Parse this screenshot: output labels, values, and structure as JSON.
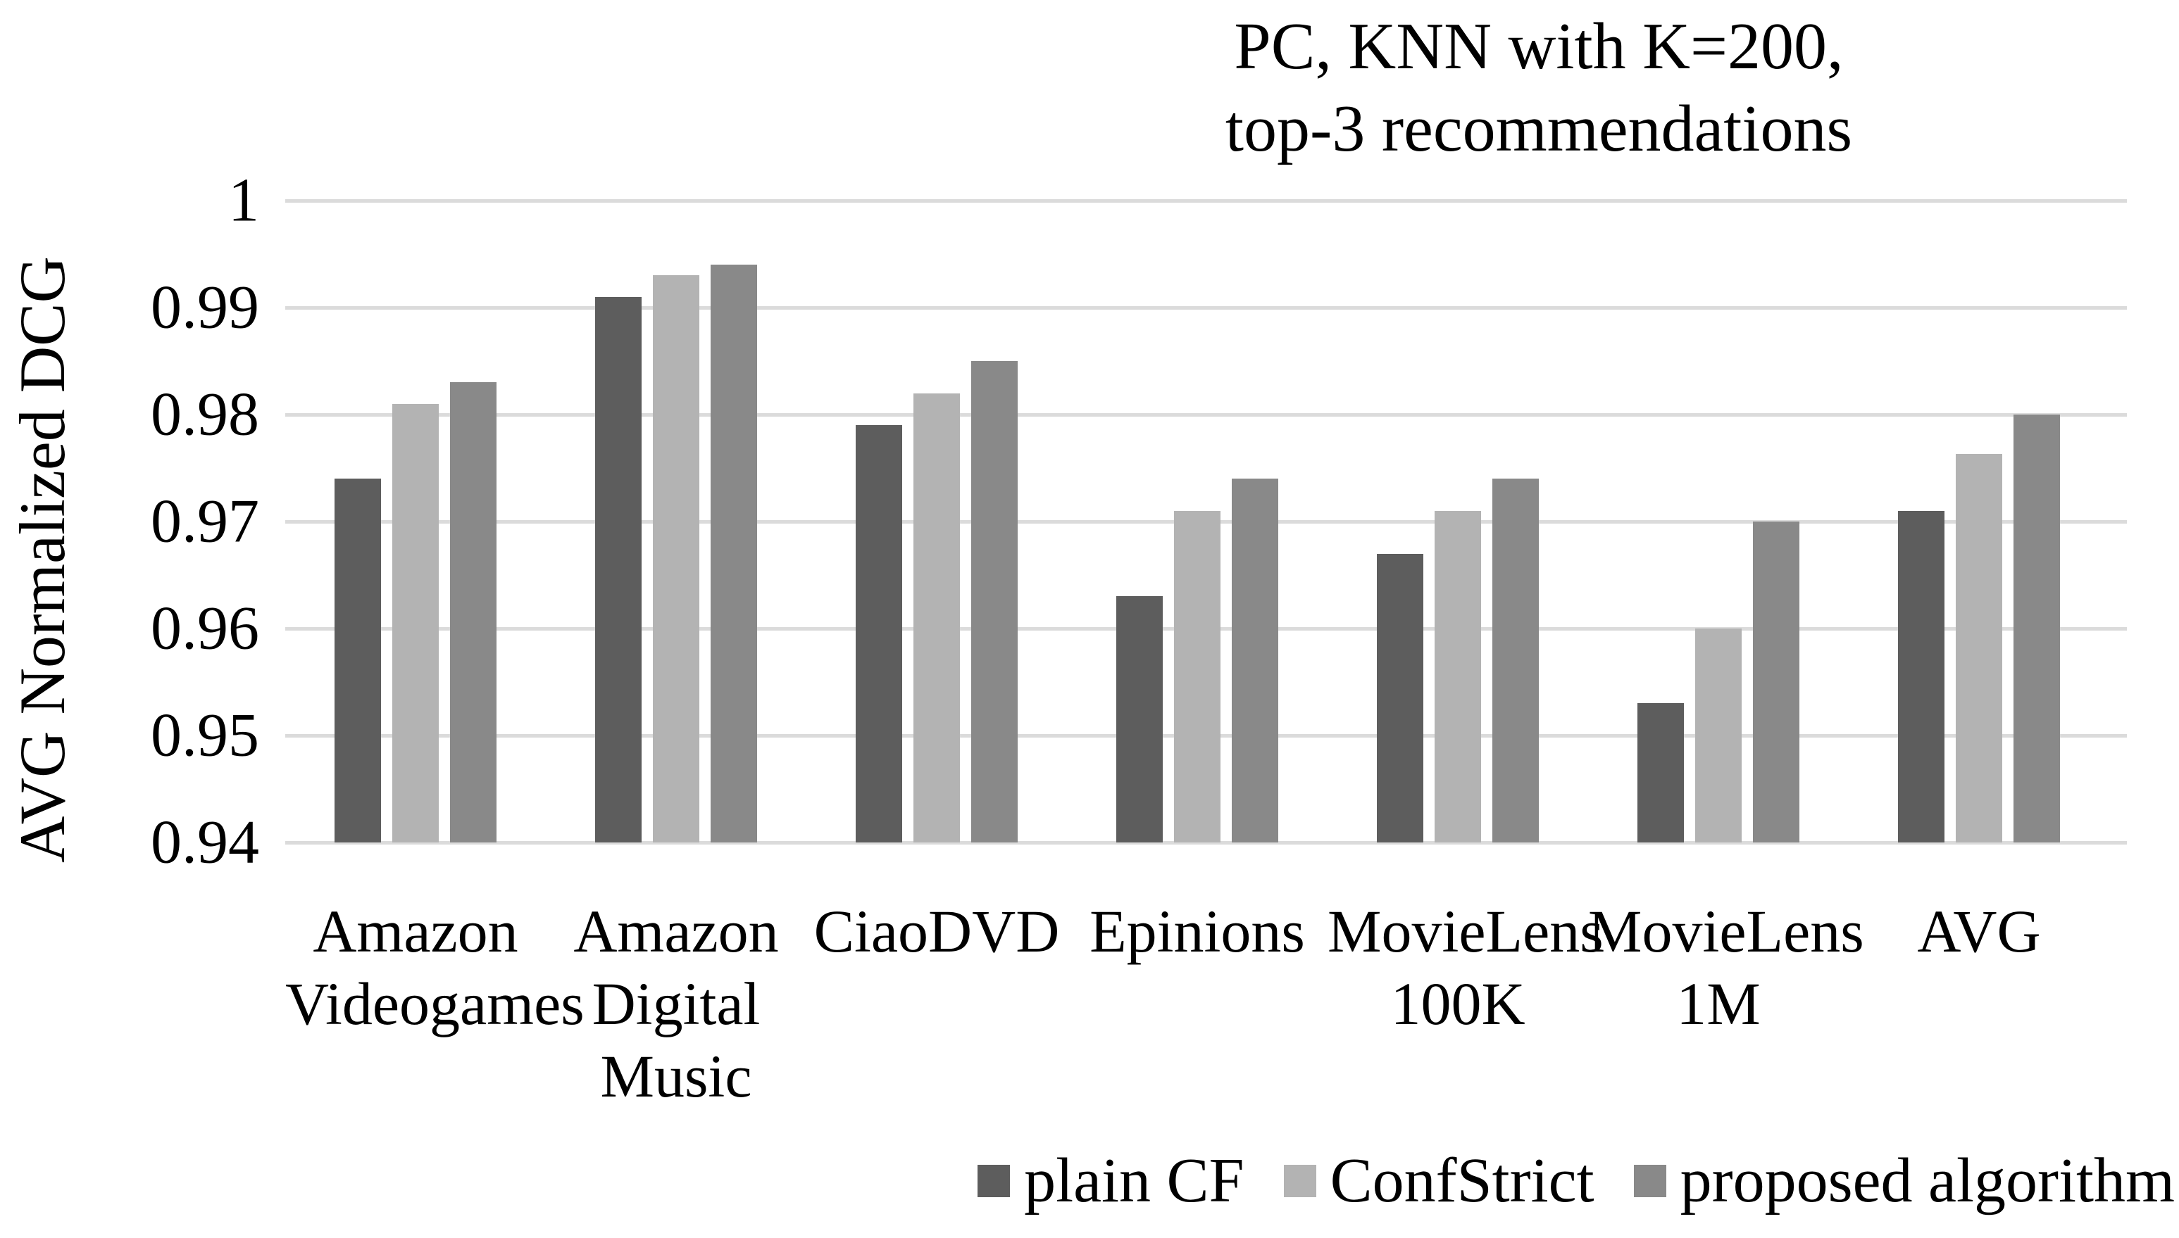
{
  "figure": {
    "title_lines": [
      "PC, KNN with K=200,",
      "top-3 recommendations"
    ]
  },
  "chart_data": {
    "type": "bar",
    "title": "PC, KNN with K=200, top-3 recommendations",
    "xlabel": "",
    "ylabel": "AVG Normalized DCG",
    "ylim": [
      0.94,
      1.0
    ],
    "ytick_step": 0.01,
    "yticks": [
      1,
      0.99,
      0.98,
      0.97,
      0.96,
      0.95,
      0.94
    ],
    "ytick_labels": [
      "1",
      "0.99",
      "0.98",
      "0.97",
      "0.96",
      "0.95",
      "0.94"
    ],
    "grid": true,
    "legend_position": "bottom-right",
    "categories": [
      "Amazon Videogames",
      "Amazon Digital Music",
      "CiaoDVD",
      "Epinions",
      "MovieLens 100K",
      "MovieLens 1M",
      "AVG"
    ],
    "series": [
      {
        "name": "plain CF",
        "color": "#5D5D5D",
        "values": [
          0.974,
          0.991,
          0.979,
          0.963,
          0.967,
          0.953,
          0.971
        ]
      },
      {
        "name": "ConfStrict",
        "color": "#B3B3B3",
        "values": [
          0.981,
          0.993,
          0.982,
          0.971,
          0.971,
          0.96,
          0.9763
        ]
      },
      {
        "name": "proposed algorithm",
        "color": "#898989",
        "values": [
          0.983,
          0.994,
          0.985,
          0.974,
          0.974,
          0.97,
          0.98
        ]
      }
    ]
  },
  "colors": {
    "background": "#FFFFFF",
    "gridline": "#DBDBDB",
    "text": "#000000"
  }
}
